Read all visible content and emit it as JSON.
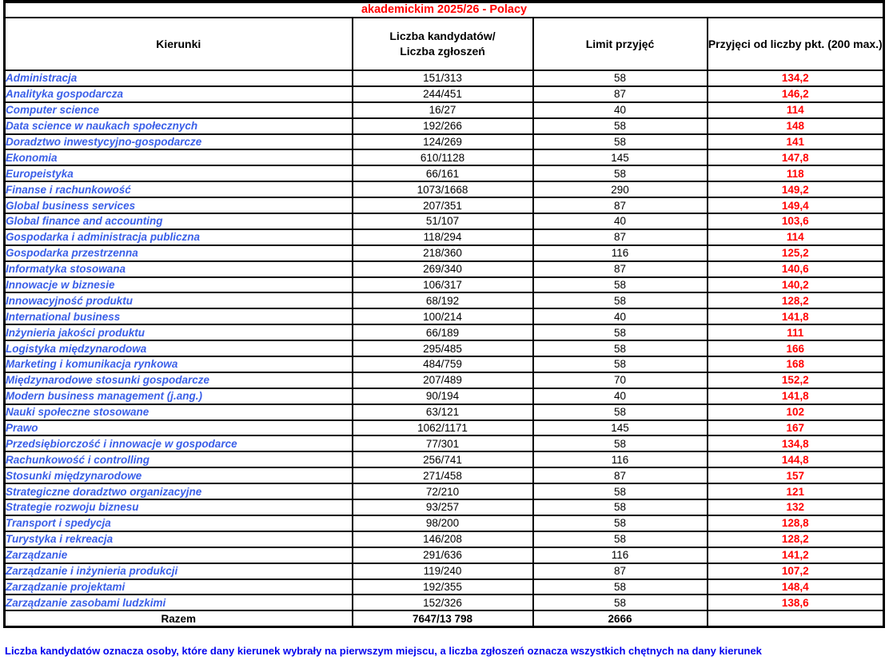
{
  "title": "akademickim 2025/26 - Polacy",
  "columns": {
    "kierunki": "Kierunki",
    "kandydaci_line1": "Liczba kandydatów/",
    "kandydaci_line2": "Liczba zgłoszeń",
    "limit": "Limit przyjęć",
    "przyjeci": "Przyjęci od liczby pkt. (200 max.)"
  },
  "rows": [
    {
      "name": "Administracja",
      "candidates": "151/313",
      "limit": "58",
      "points": "134,2"
    },
    {
      "name": "Analityka gospodarcza",
      "candidates": "244/451",
      "limit": "87",
      "points": "146,2"
    },
    {
      "name": "Computer science",
      "candidates": "16/27",
      "limit": "40",
      "points": "114"
    },
    {
      "name": "Data science w naukach społecznych",
      "candidates": "192/266",
      "limit": "58",
      "points": "148"
    },
    {
      "name": "Doradztwo inwestycyjno-gospodarcze",
      "candidates": "124/269",
      "limit": "58",
      "points": "141"
    },
    {
      "name": "Ekonomia",
      "candidates": "610/1128",
      "limit": "145",
      "points": "147,8"
    },
    {
      "name": "Europeistyka",
      "candidates": "66/161",
      "limit": "58",
      "points": "118"
    },
    {
      "name": "Finanse i rachunkowość",
      "candidates": "1073/1668",
      "limit": "290",
      "points": "149,2"
    },
    {
      "name": "Global business services",
      "candidates": "207/351",
      "limit": "87",
      "points": "149,4"
    },
    {
      "name": "Global finance and accounting",
      "candidates": "51/107",
      "limit": "40",
      "points": "103,6"
    },
    {
      "name": "Gospodarka i administracja publiczna",
      "candidates": "118/294",
      "limit": "87",
      "points": "114"
    },
    {
      "name": "Gospodarka przestrzenna",
      "candidates": "218/360",
      "limit": "116",
      "points": "125,2"
    },
    {
      "name": "Informatyka stosowana",
      "candidates": "269/340",
      "limit": "87",
      "points": "140,6"
    },
    {
      "name": "Innowacje w biznesie",
      "candidates": "106/317",
      "limit": "58",
      "points": "140,2"
    },
    {
      "name": "Innowacyjność produktu",
      "candidates": "68/192",
      "limit": "58",
      "points": "128,2"
    },
    {
      "name": "International business",
      "candidates": "100/214",
      "limit": "40",
      "points": "141,8"
    },
    {
      "name": "Inżynieria jakości produktu",
      "candidates": "66/189",
      "limit": "58",
      "points": "111"
    },
    {
      "name": "Logistyka międzynarodowa",
      "candidates": "295/485",
      "limit": "58",
      "points": "166"
    },
    {
      "name": "Marketing i komunikacja rynkowa",
      "candidates": "484/759",
      "limit": "58",
      "points": "168"
    },
    {
      "name": "Międzynarodowe stosunki gospodarcze",
      "candidates": "207/489",
      "limit": "70",
      "points": "152,2"
    },
    {
      "name": "Modern business management (j.ang.)",
      "candidates": "90/194",
      "limit": "40",
      "points": "141,8"
    },
    {
      "name": "Nauki społeczne stosowane",
      "candidates": "63/121",
      "limit": "58",
      "points": "102"
    },
    {
      "name": "Prawo",
      "candidates": "1062/1171",
      "limit": "145",
      "points": "167"
    },
    {
      "name": "Przedsiębiorczość i innowacje w gospodarce",
      "candidates": "77/301",
      "limit": "58",
      "points": "134,8"
    },
    {
      "name": "Rachunkowość i controlling",
      "candidates": "256/741",
      "limit": "116",
      "points": "144,8"
    },
    {
      "name": "Stosunki międzynarodowe",
      "candidates": "271/458",
      "limit": "87",
      "points": "157"
    },
    {
      "name": "Strategiczne doradztwo organizacyjne",
      "candidates": "72/210",
      "limit": "58",
      "points": "121"
    },
    {
      "name": "Strategie rozwoju biznesu",
      "candidates": "93/257",
      "limit": "58",
      "points": "132"
    },
    {
      "name": "Transport i spedycja",
      "candidates": "98/200",
      "limit": "58",
      "points": "128,8"
    },
    {
      "name": "Turystyka i rekreacja",
      "candidates": "146/208",
      "limit": "58",
      "points": "128,2"
    },
    {
      "name": "Zarządzanie",
      "candidates": "291/636",
      "limit": "116",
      "points": "141,2"
    },
    {
      "name": "Zarządzanie i inżynieria produkcji",
      "candidates": "119/240",
      "limit": "87",
      "points": "107,2"
    },
    {
      "name": "Zarządzanie projektami",
      "candidates": "192/355",
      "limit": "58",
      "points": "148,4"
    },
    {
      "name": "Zarządzanie zasobami ludzkimi",
      "candidates": "152/326",
      "limit": "58",
      "points": "138,6"
    }
  ],
  "total_row": {
    "label": "Razem",
    "candidates": "7647/13 798",
    "limit": "2666",
    "points": ""
  },
  "footnote": "Liczba kandydatów oznacza osoby, które dany kierunek wybrały na pierwszym miejscu, a liczba zgłoszeń oznacza wszystkich chętnych na dany kierunek",
  "colors": {
    "title_red": "#ff0000",
    "points_red": "#ff0000",
    "program_name_blue": "#3a5fe8",
    "footnote_blue": "#0202ee",
    "border_black": "#000000"
  }
}
